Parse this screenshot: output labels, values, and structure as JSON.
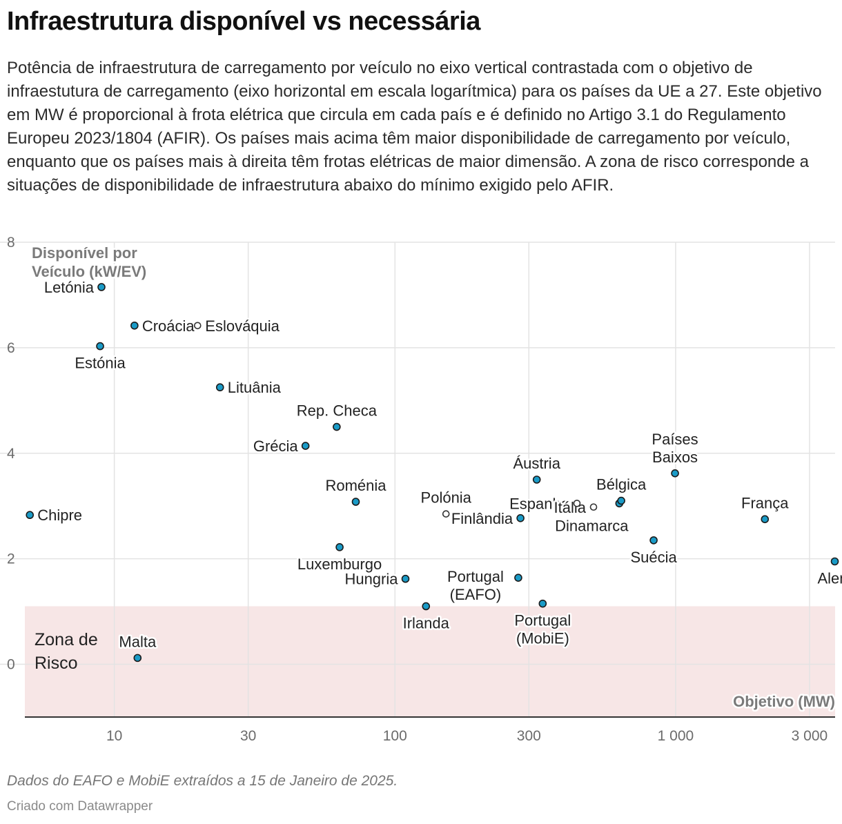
{
  "title": "Infraestrutura disponível vs necessária",
  "subtitle": "Potência de infraestrutura de carregamento por veículo no eixo vertical contrastada com o objetivo de infraestutura de carregamento (eixo horizontal em escala logarítmica) para os países da UE a 27. Este objetivo em MW é proporcional à frota elétrica que circula em cada país e é definido no Artigo 3.1 do Regulamento Europeu 2023/1804 (AFIR). Os países mais acima têm maior disponibilidade de carregamento por veículo, enquanto que os países mais à direita têm frotas elétricas de maior dimensão. A zona de risco corresponde a situações de disponibilidade de infraestrutura abaixo do mínimo exigido pelo AFIR.",
  "notes": "Dados do EAFO e MobiE extraídos a 15 de Janeiro de 2025.",
  "byline": "Criado com Datawrapper",
  "chart_data": {
    "type": "scatter",
    "x_scale": "log",
    "xlabel": "Objetivo (MW)",
    "ylabel_lines": [
      "Disponível por",
      "Veículo (kW/EV)"
    ],
    "xlim": [
      4.8,
      3700
    ],
    "ylim": [
      -1,
      8
    ],
    "x_ticks": [
      10,
      30,
      100,
      300,
      1000,
      3000
    ],
    "x_tick_labels": [
      "10",
      "30",
      "100",
      "300",
      "1 000",
      "3 000"
    ],
    "y_ticks": [
      0,
      2,
      4,
      6,
      8
    ],
    "y_tick_labels": [
      "0",
      "2",
      "4",
      "6",
      "8"
    ],
    "grid": true,
    "risk_zone": {
      "label_lines": [
        "Zona de",
        "Risco"
      ],
      "y_max": 1.1,
      "color": "#f7e6e6"
    },
    "point_color": "#1a9bc7",
    "points": [
      {
        "name": "Letónia",
        "label_lines": [
          "Letónia"
        ],
        "x": 9.0,
        "y": 7.15,
        "label_pos": "left"
      },
      {
        "name": "Croácia",
        "label_lines": [
          "Croácia"
        ],
        "x": 11.8,
        "y": 6.42,
        "label_pos": "right"
      },
      {
        "name": "Eslováquia",
        "label_lines": [
          "Eslováquia"
        ],
        "x": 19.8,
        "y": 6.42,
        "label_pos": "right",
        "style": "hollow"
      },
      {
        "name": "Estónia",
        "label_lines": [
          "Estónia"
        ],
        "x": 8.9,
        "y": 6.03,
        "label_pos": "below"
      },
      {
        "name": "Lituânia",
        "label_lines": [
          "Lituânia"
        ],
        "x": 23.8,
        "y": 5.25,
        "label_pos": "right"
      },
      {
        "name": "Rep. Checa",
        "label_lines": [
          "Rep. Checa"
        ],
        "x": 62,
        "y": 4.5,
        "label_pos": "above"
      },
      {
        "name": "Grécia",
        "label_lines": [
          "Grécia"
        ],
        "x": 48,
        "y": 4.14,
        "label_pos": "left"
      },
      {
        "name": "Chipre",
        "label_lines": [
          "Chipre"
        ],
        "x": 5.0,
        "y": 2.83,
        "label_pos": "right"
      },
      {
        "name": "Roménia",
        "label_lines": [
          "Roménia"
        ],
        "x": 72.5,
        "y": 3.08,
        "label_pos": "above"
      },
      {
        "name": "Luxemburgo",
        "label_lines": [
          "Luxemburgo"
        ],
        "x": 63.5,
        "y": 2.22,
        "label_pos": "below"
      },
      {
        "name": "Hungria",
        "label_lines": [
          "Hungria"
        ],
        "x": 109,
        "y": 1.62,
        "label_pos": "left"
      },
      {
        "name": "Polónia",
        "label_lines": [
          "Polónia"
        ],
        "x": 152,
        "y": 2.85,
        "label_pos": "above",
        "style": "hollow"
      },
      {
        "name": "Irlanda",
        "label_lines": [
          "Irlanda"
        ],
        "x": 129,
        "y": 1.1,
        "label_pos": "below"
      },
      {
        "name": "Finlândia",
        "label_lines": [
          "Finlândia"
        ],
        "x": 280,
        "y": 2.77,
        "label_pos": "left"
      },
      {
        "name": "Portugal (EAFO)",
        "label_lines": [
          "Portugal",
          "(EAFO)"
        ],
        "x": 275,
        "y": 1.64,
        "label_pos": "left-stack"
      },
      {
        "name": "Portugal (MobiE)",
        "label_lines": [
          "Portugal",
          "(MobiE)"
        ],
        "x": 336,
        "y": 1.15,
        "label_pos": "below"
      },
      {
        "name": "Áustria",
        "label_lines": [
          "Áustria"
        ],
        "x": 320,
        "y": 3.5,
        "label_pos": "above"
      },
      {
        "name": "Espanha",
        "label_lines": [
          "Espanha"
        ],
        "x": 445,
        "y": 3.05,
        "label_pos": "left",
        "style": "hollow"
      },
      {
        "name": "Itália",
        "label_lines": [
          "Itália"
        ],
        "x": 510,
        "y": 2.98,
        "label_pos": "left",
        "style": "hollow"
      },
      {
        "name": "Dinamarca",
        "label_lines": [
          "Dinamarca"
        ],
        "x": 630,
        "y": 3.05,
        "label_pos": "below-left"
      },
      {
        "name": "Bélgica",
        "label_lines": [
          "Bélgica"
        ],
        "x": 640,
        "y": 3.1,
        "label_pos": "above"
      },
      {
        "name": "Países Baixos",
        "label_lines": [
          "Países",
          "Baixos"
        ],
        "x": 995,
        "y": 3.62,
        "label_pos": "above"
      },
      {
        "name": "Suécia",
        "label_lines": [
          "Suécia"
        ],
        "x": 835,
        "y": 2.35,
        "label_pos": "below"
      },
      {
        "name": "França",
        "label_lines": [
          "França"
        ],
        "x": 2080,
        "y": 2.75,
        "label_pos": "above"
      },
      {
        "name": "Alemanha",
        "label_lines": [
          "Alem"
        ],
        "x": 3690,
        "y": 1.95,
        "label_pos": "below"
      },
      {
        "name": "Malta",
        "label_lines": [
          "Malta"
        ],
        "x": 12.1,
        "y": 0.12,
        "label_pos": "above"
      }
    ]
  }
}
